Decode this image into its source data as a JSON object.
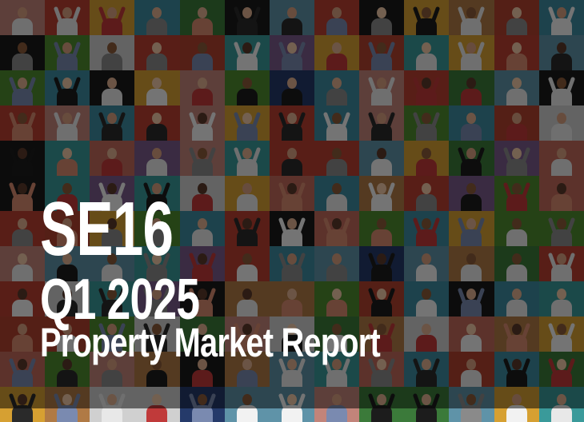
{
  "report": {
    "postcode": "SE16",
    "period": "Q1 2025",
    "subtitle": "Property Market Report"
  },
  "background": {
    "description_icon": "people-photo-mosaic"
  },
  "colors": {
    "text": "#ffffff",
    "overlay": "#000000"
  }
}
